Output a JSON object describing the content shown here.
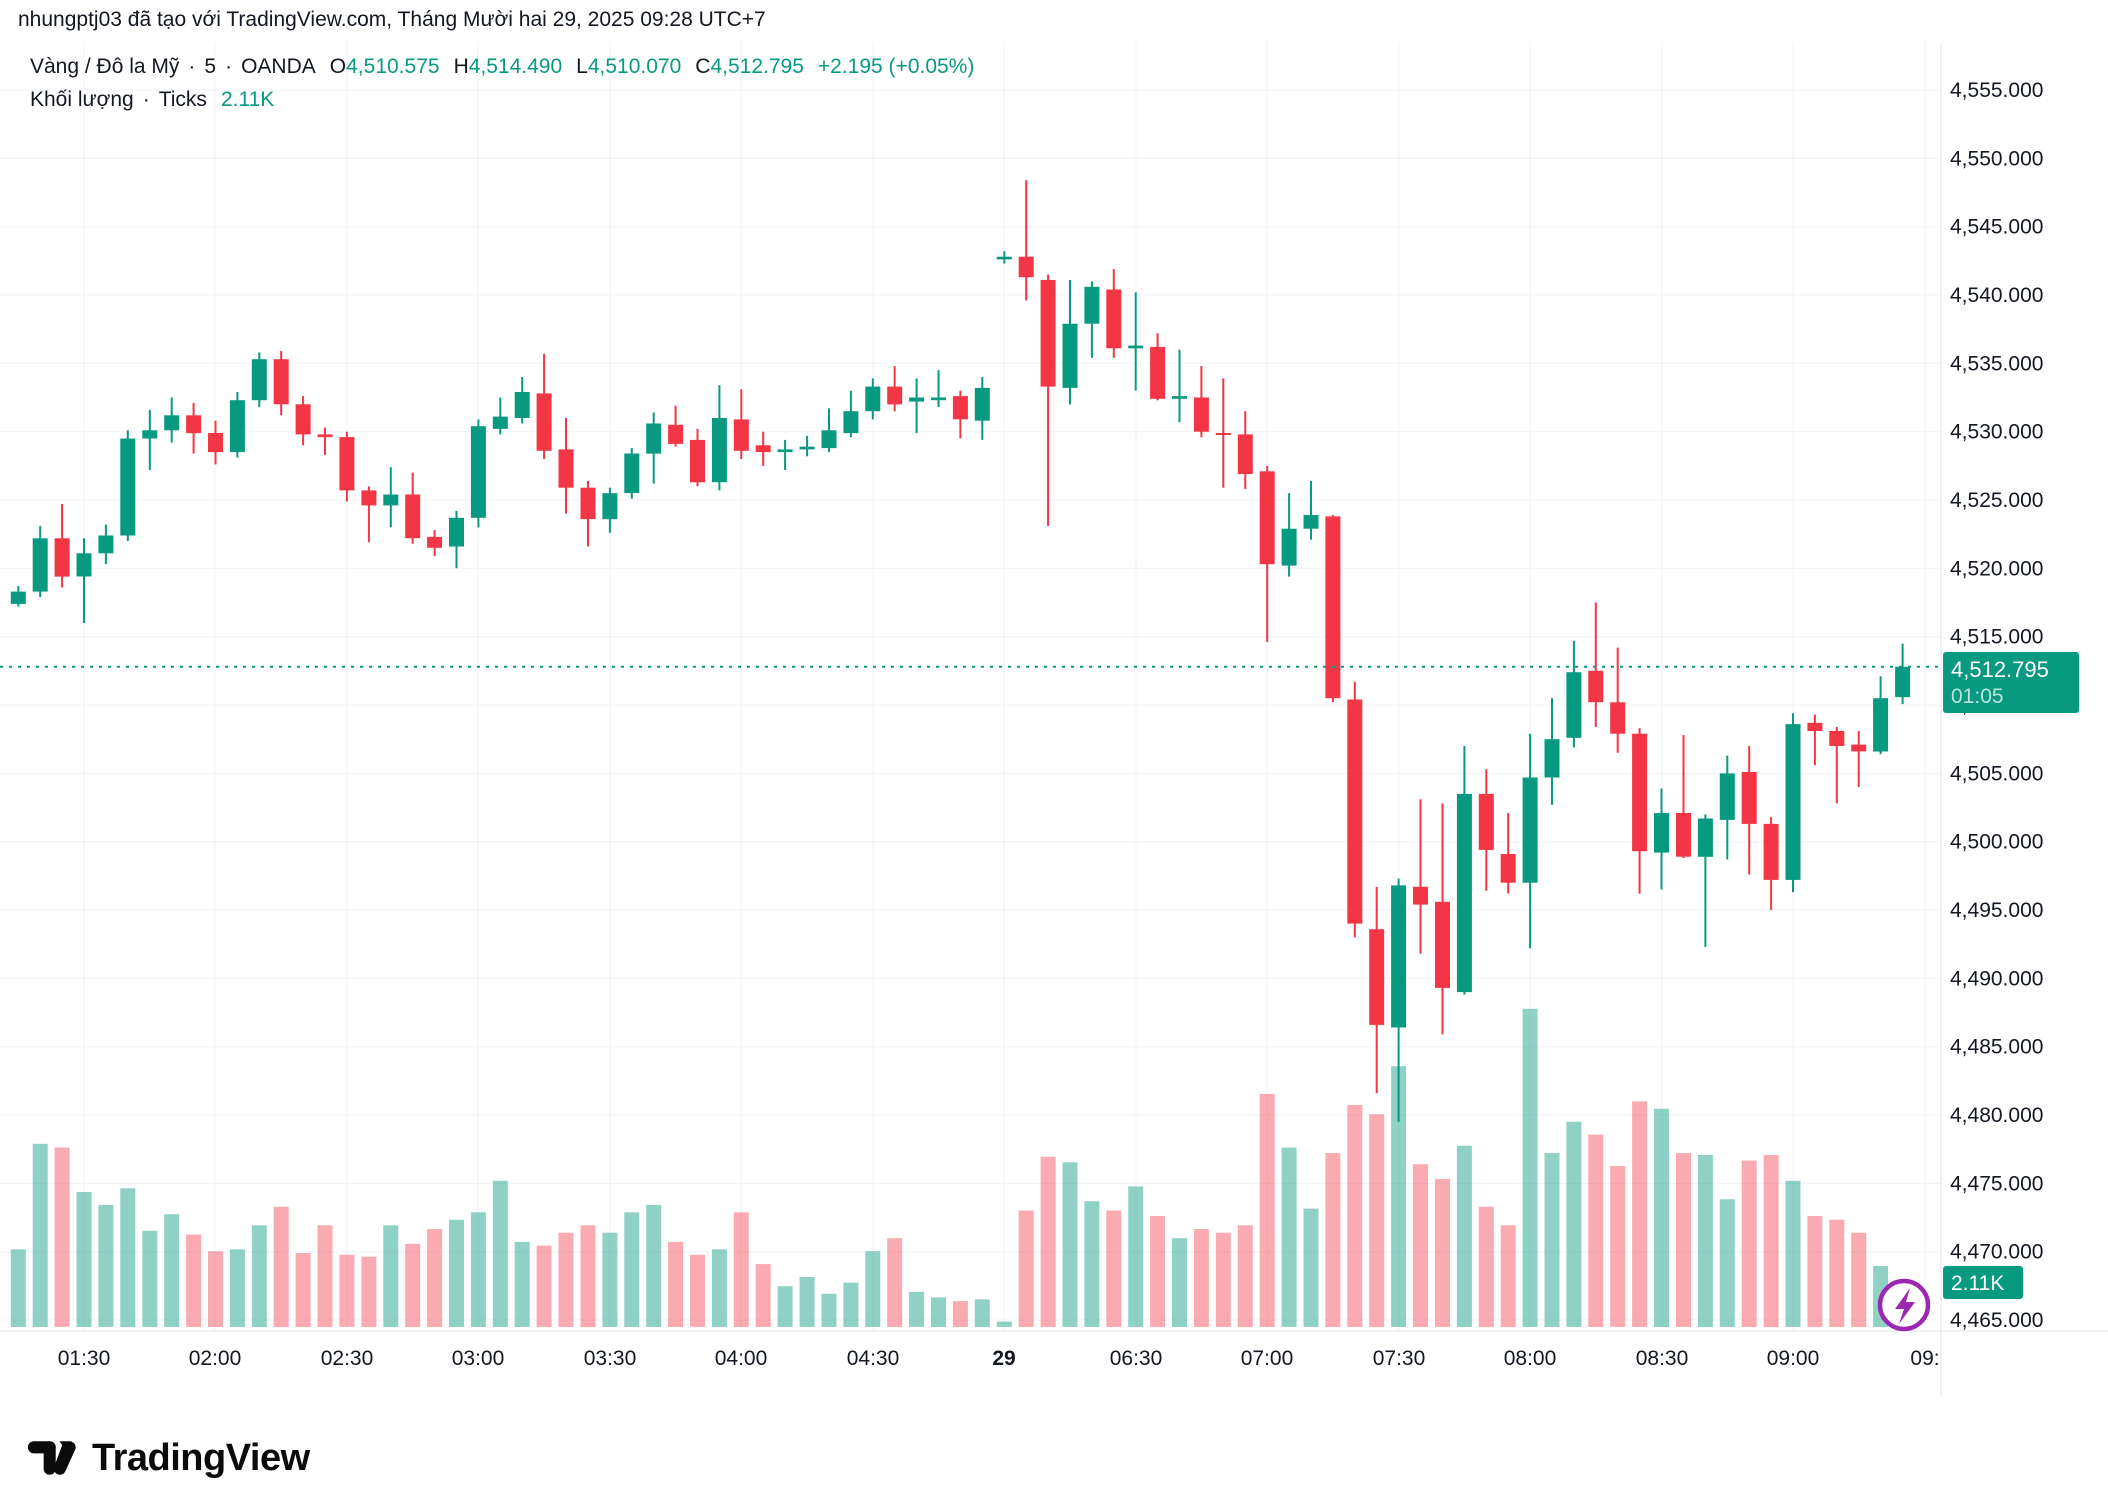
{
  "attribution": "nhungptj03 đã tạo với TradingView.com, Tháng Mười hai 29, 2025 09:28 UTC+7",
  "legend": {
    "symbol": "Vàng / Đô la Mỹ",
    "sep": "·",
    "interval": "5",
    "exchange": "OANDA",
    "o_key": "O",
    "o_val": "4,510.575",
    "h_key": "H",
    "h_val": "4,514.490",
    "l_key": "L",
    "l_val": "4,510.070",
    "c_key": "C",
    "c_val": "4,512.795",
    "change": "+2.195 (+0.05%)"
  },
  "volume_legend": {
    "label": "Khối lượng",
    "sep": "·",
    "source": "Ticks",
    "value": "2.11K"
  },
  "price_axis": {
    "labels": [
      "4,555.000",
      "4,550.000",
      "4,545.000",
      "4,540.000",
      "4,535.000",
      "4,530.000",
      "4,525.000",
      "4,520.000",
      "4,515.000",
      "4,510.000",
      "4,505.000",
      "4,500.000",
      "4,495.000",
      "4,490.000",
      "4,485.000",
      "4,480.000",
      "4,475.000",
      "4,470.000",
      "4,465.000"
    ],
    "current_price_label": "4,512.795",
    "countdown": "01:05",
    "volume_badge": "2.11K"
  },
  "time_axis": {
    "ticks": [
      {
        "label": "01:30",
        "bold": false
      },
      {
        "label": "02:00",
        "bold": false
      },
      {
        "label": "02:30",
        "bold": false
      },
      {
        "label": "03:00",
        "bold": false
      },
      {
        "label": "03:30",
        "bold": false
      },
      {
        "label": "04:00",
        "bold": false
      },
      {
        "label": "04:30",
        "bold": false
      },
      {
        "label": "29",
        "bold": true
      },
      {
        "label": "06:30",
        "bold": false
      },
      {
        "label": "07:00",
        "bold": false
      },
      {
        "label": "07:30",
        "bold": false
      },
      {
        "label": "08:00",
        "bold": false
      },
      {
        "label": "08:30",
        "bold": false
      },
      {
        "label": "09:00",
        "bold": false
      },
      {
        "label": "09:",
        "bold": false
      }
    ]
  },
  "footer": {
    "logo_text": "TradingView"
  },
  "icons": {
    "bottom_right": "lightning-icon",
    "footer": "tradingview-logo"
  },
  "colors": {
    "up": "#089981",
    "down": "#f23645",
    "vol_up": "rgba(8,153,129,0.45)",
    "vol_down": "rgba(242,54,69,0.42)",
    "grid": "#f0f3fa",
    "axis_border": "#e0e3eb",
    "axis_text": "#131722",
    "badge_bg": "#089981",
    "badge_text": "#ffffff",
    "lightning_purple": "#9c27b0"
  },
  "chart_data": {
    "type": "candlestick_with_volume",
    "title": "Vàng / Đô la Mỹ · 5 · OANDA",
    "interval_minutes": 5,
    "current_price": 4512.795,
    "current_price_line_style": "dotted",
    "price_axis_range": [
      4462.0,
      4557.5
    ],
    "grid": true,
    "volume_unit": "K ticks",
    "columns": [
      "time",
      "open",
      "high",
      "low",
      "close",
      "volume_k"
    ],
    "candles": [
      [
        "01:15",
        4517.4,
        4518.7,
        4517.2,
        4518.3,
        4.2
      ],
      [
        "01:20",
        4518.3,
        4523.1,
        4517.9,
        4522.2,
        9.9
      ],
      [
        "01:25",
        4522.2,
        4524.7,
        4518.6,
        4519.4,
        9.7
      ],
      [
        "01:30",
        4519.4,
        4522.2,
        4516.0,
        4521.1,
        7.3
      ],
      [
        "01:35",
        4521.1,
        4523.2,
        4520.3,
        4522.4,
        6.6
      ],
      [
        "01:40",
        4522.4,
        4530.1,
        4522.0,
        4529.5,
        7.5
      ],
      [
        "01:45",
        4529.5,
        4531.6,
        4527.2,
        4530.1,
        5.2
      ],
      [
        "01:50",
        4530.1,
        4532.5,
        4529.2,
        4531.2,
        6.1
      ],
      [
        "01:55",
        4531.2,
        4532.1,
        4528.4,
        4529.9,
        5.0
      ],
      [
        "02:00",
        4529.9,
        4530.8,
        4527.6,
        4528.5,
        4.1
      ],
      [
        "02:05",
        4528.5,
        4532.9,
        4528.1,
        4532.3,
        4.2
      ],
      [
        "02:10",
        4532.3,
        4535.8,
        4531.8,
        4535.3,
        5.5
      ],
      [
        "02:15",
        4535.3,
        4535.9,
        4531.2,
        4532.0,
        6.5
      ],
      [
        "02:20",
        4532.0,
        4532.6,
        4529.0,
        4529.8,
        4.0
      ],
      [
        "02:25",
        4529.8,
        4530.3,
        4528.3,
        4529.6,
        5.5
      ],
      [
        "02:30",
        4529.6,
        4530.0,
        4524.9,
        4525.7,
        3.9
      ],
      [
        "02:35",
        4525.7,
        4526.0,
        4521.9,
        4524.6,
        3.8
      ],
      [
        "02:40",
        4524.6,
        4527.4,
        4523.0,
        4525.4,
        5.5
      ],
      [
        "02:45",
        4525.4,
        4527.0,
        4521.8,
        4522.2,
        4.5
      ],
      [
        "02:50",
        4522.3,
        4522.8,
        4520.9,
        4521.5,
        5.3
      ],
      [
        "02:55",
        4521.6,
        4524.2,
        4520.0,
        4523.7,
        5.8
      ],
      [
        "03:00",
        4523.7,
        4530.9,
        4523.0,
        4530.4,
        6.2
      ],
      [
        "03:05",
        4530.2,
        4532.5,
        4529.8,
        4531.1,
        7.9
      ],
      [
        "03:10",
        4531.0,
        4534.0,
        4530.6,
        4532.9,
        4.6
      ],
      [
        "03:15",
        4532.8,
        4535.7,
        4528.0,
        4528.6,
        4.4
      ],
      [
        "03:20",
        4528.7,
        4531.0,
        4524.0,
        4525.9,
        5.1
      ],
      [
        "03:25",
        4525.9,
        4526.4,
        4521.6,
        4523.6,
        5.5
      ],
      [
        "03:30",
        4523.6,
        4525.9,
        4522.6,
        4525.5,
        5.1
      ],
      [
        "03:35",
        4525.5,
        4528.8,
        4525.1,
        4528.4,
        6.2
      ],
      [
        "03:40",
        4528.4,
        4531.4,
        4526.2,
        4530.6,
        6.6
      ],
      [
        "03:45",
        4530.5,
        4531.9,
        4528.9,
        4529.1,
        4.6
      ],
      [
        "03:50",
        4529.4,
        4530.2,
        4526.0,
        4526.3,
        3.9
      ],
      [
        "03:55",
        4526.3,
        4533.4,
        4525.7,
        4531.0,
        4.2
      ],
      [
        "04:00",
        4530.9,
        4533.1,
        4528.0,
        4528.6,
        6.2
      ],
      [
        "04:05",
        4529.0,
        4530.0,
        4527.5,
        4528.5,
        3.4
      ],
      [
        "04:10",
        4528.5,
        4529.4,
        4527.2,
        4528.7,
        2.2
      ],
      [
        "04:15",
        4528.7,
        4529.7,
        4528.2,
        4528.9,
        2.7
      ],
      [
        "04:20",
        4528.8,
        4531.7,
        4528.5,
        4530.1,
        1.8
      ],
      [
        "04:25",
        4529.9,
        4533.0,
        4529.6,
        4531.5,
        2.4
      ],
      [
        "04:30",
        4531.5,
        4533.9,
        4530.9,
        4533.3,
        4.1
      ],
      [
        "04:35",
        4533.3,
        4534.8,
        4531.5,
        4532.0,
        4.8
      ],
      [
        "04:40",
        4532.2,
        4533.9,
        4529.9,
        4532.5,
        1.9
      ],
      [
        "04:45",
        4532.3,
        4534.5,
        4531.8,
        4532.5,
        1.6
      ],
      [
        "04:50",
        4532.6,
        4533.0,
        4529.5,
        4530.9,
        1.4
      ],
      [
        "04:55",
        4530.8,
        4534.0,
        4529.4,
        4533.2,
        1.5
      ],
      [
        "06:00",
        4542.6,
        4543.2,
        4542.3,
        4542.8,
        0.3
      ],
      [
        "06:05",
        4542.8,
        4548.4,
        4539.6,
        4541.3,
        6.3
      ],
      [
        "06:10",
        4541.1,
        4541.5,
        4523.1,
        4533.3,
        9.2
      ],
      [
        "06:15",
        4533.2,
        4541.1,
        4532.0,
        4537.9,
        8.9
      ],
      [
        "06:20",
        4537.9,
        4541.0,
        4535.4,
        4540.6,
        6.8
      ],
      [
        "06:25",
        4540.4,
        4541.9,
        4535.4,
        4536.1,
        6.3
      ],
      [
        "06:30",
        4536.1,
        4540.2,
        4533.0,
        4536.3,
        7.6
      ],
      [
        "06:35",
        4536.2,
        4537.2,
        4532.3,
        4532.4,
        6.0
      ],
      [
        "06:40",
        4532.4,
        4536.0,
        4530.7,
        4532.6,
        4.8
      ],
      [
        "06:45",
        4532.5,
        4534.8,
        4529.6,
        4530.0,
        5.3
      ],
      [
        "06:50",
        4529.9,
        4533.9,
        4525.9,
        4529.8,
        5.1
      ],
      [
        "06:55",
        4529.8,
        4531.5,
        4525.8,
        4526.9,
        5.5
      ],
      [
        "07:00",
        4527.1,
        4527.5,
        4514.6,
        4520.3,
        12.6
      ],
      [
        "07:05",
        4520.2,
        4525.5,
        4519.4,
        4522.9,
        9.7
      ],
      [
        "07:10",
        4522.9,
        4526.4,
        4522.1,
        4523.9,
        6.4
      ],
      [
        "07:15",
        4523.8,
        4523.9,
        4510.2,
        4510.5,
        9.4
      ],
      [
        "07:20",
        4510.4,
        4511.7,
        4493.0,
        4494.0,
        12.0
      ],
      [
        "07:25",
        4493.6,
        4496.7,
        4481.6,
        4486.6,
        11.5
      ],
      [
        "07:30",
        4486.4,
        4497.3,
        4479.5,
        4496.8,
        14.1
      ],
      [
        "07:35",
        4496.7,
        4503.1,
        4491.8,
        4495.4,
        8.8
      ],
      [
        "07:40",
        4495.6,
        4502.8,
        4485.9,
        4489.3,
        8.0
      ],
      [
        "07:45",
        4489.0,
        4507.0,
        4488.8,
        4503.5,
        9.8
      ],
      [
        "07:50",
        4503.5,
        4505.3,
        4496.4,
        4499.4,
        6.5
      ],
      [
        "07:55",
        4499.1,
        4502.1,
        4496.2,
        4497.0,
        5.5
      ],
      [
        "08:00",
        4497.0,
        4507.9,
        4492.2,
        4504.7,
        17.2
      ],
      [
        "08:05",
        4504.7,
        4510.5,
        4502.7,
        4507.5,
        9.4
      ],
      [
        "08:10",
        4507.6,
        4514.7,
        4506.9,
        4512.4,
        11.1
      ],
      [
        "08:15",
        4512.5,
        4517.5,
        4508.4,
        4510.2,
        10.4
      ],
      [
        "08:20",
        4510.2,
        4514.2,
        4506.5,
        4507.9,
        8.7
      ],
      [
        "08:25",
        4507.9,
        4508.3,
        4496.2,
        4499.3,
        12.2
      ],
      [
        "08:30",
        4499.2,
        4503.9,
        4496.5,
        4502.1,
        11.8
      ],
      [
        "08:35",
        4502.1,
        4507.8,
        4498.8,
        4498.9,
        9.4
      ],
      [
        "08:40",
        4498.9,
        4502.0,
        4492.3,
        4501.7,
        9.3
      ],
      [
        "08:45",
        4501.6,
        4506.3,
        4498.7,
        4505.0,
        6.9
      ],
      [
        "08:50",
        4505.1,
        4507.0,
        4497.6,
        4501.3,
        9.0
      ],
      [
        "08:55",
        4501.3,
        4501.8,
        4495.0,
        4497.2,
        9.3
      ],
      [
        "09:00",
        4497.2,
        4509.4,
        4496.3,
        4508.6,
        7.9
      ],
      [
        "09:05",
        4508.7,
        4509.3,
        4505.6,
        4508.1,
        6.0
      ],
      [
        "09:10",
        4508.1,
        4508.4,
        4502.8,
        4507.0,
        5.8
      ],
      [
        "09:15",
        4507.1,
        4508.1,
        4504.0,
        4506.6,
        5.1
      ],
      [
        "09:20",
        4506.6,
        4512.1,
        4506.4,
        4510.5,
        3.3
      ],
      [
        "09:25",
        4510.575,
        4514.49,
        4510.07,
        4512.795,
        2.11
      ]
    ]
  }
}
